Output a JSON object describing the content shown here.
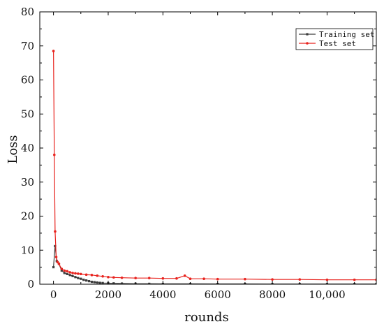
{
  "chart_data": {
    "type": "line",
    "title": "",
    "xlabel": "rounds",
    "ylabel": "Loss",
    "xlim": [
      -500,
      11800
    ],
    "ylim": [
      0,
      80
    ],
    "x_ticks": [
      {
        "value": 0,
        "label": "0"
      },
      {
        "value": 2000,
        "label": "2000"
      },
      {
        "value": 4000,
        "label": "4000"
      },
      {
        "value": 6000,
        "label": "6000"
      },
      {
        "value": 8000,
        "label": "8000"
      },
      {
        "value": 10000,
        "label": "10,000"
      }
    ],
    "y_ticks": [
      {
        "value": 0,
        "label": "0"
      },
      {
        "value": 10,
        "label": "10"
      },
      {
        "value": 20,
        "label": "20"
      },
      {
        "value": 30,
        "label": "30"
      },
      {
        "value": 40,
        "label": "40"
      },
      {
        "value": 50,
        "label": "50"
      },
      {
        "value": 60,
        "label": "60"
      },
      {
        "value": 70,
        "label": "70"
      },
      {
        "value": 80,
        "label": "80"
      }
    ],
    "grid": false,
    "legend_position": "top-right",
    "series": [
      {
        "name": "Training set",
        "color": "#3d3d3d",
        "x": [
          0,
          60,
          120,
          200,
          300,
          400,
          500,
          600,
          700,
          800,
          900,
          1000,
          1100,
          1200,
          1300,
          1400,
          1500,
          1600,
          1700,
          1800,
          2000,
          2200,
          2500,
          3000,
          3500,
          4000,
          5000,
          6000,
          7000,
          8000,
          9000,
          10000,
          11000,
          11800
        ],
        "y": [
          5.0,
          11.2,
          6.8,
          6.0,
          4.0,
          3.3,
          3.0,
          2.7,
          2.4,
          2.1,
          1.8,
          1.6,
          1.3,
          1.1,
          0.9,
          0.7,
          0.6,
          0.5,
          0.4,
          0.35,
          0.3,
          0.25,
          0.2,
          0.15,
          0.12,
          0.1,
          0.1,
          0.08,
          0.08,
          0.07,
          0.07,
          0.06,
          0.06,
          0.06
        ]
      },
      {
        "name": "Test set",
        "color": "#e8231e",
        "x": [
          0,
          30,
          60,
          100,
          150,
          200,
          300,
          400,
          500,
          600,
          700,
          800,
          900,
          1000,
          1200,
          1400,
          1600,
          1800,
          2000,
          2200,
          2500,
          3000,
          3500,
          4000,
          4500,
          4800,
          5000,
          5500,
          6000,
          7000,
          8000,
          9000,
          10000,
          11000,
          11800
        ],
        "y": [
          68.5,
          38.0,
          15.5,
          8.0,
          6.5,
          6.0,
          4.5,
          4.0,
          3.8,
          3.5,
          3.3,
          3.2,
          3.1,
          3.0,
          2.8,
          2.7,
          2.5,
          2.3,
          2.1,
          2.0,
          1.9,
          1.8,
          1.8,
          1.7,
          1.7,
          2.5,
          1.6,
          1.6,
          1.5,
          1.5,
          1.4,
          1.4,
          1.3,
          1.3,
          1.3
        ]
      }
    ]
  }
}
